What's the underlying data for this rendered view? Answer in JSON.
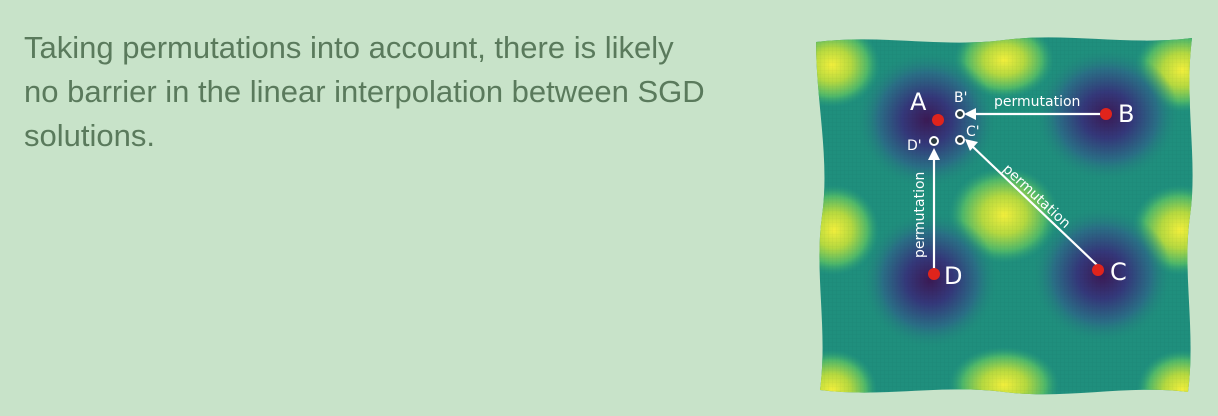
{
  "text": {
    "lines": [
      "Taking permutations into account, there is likely",
      "no barrier in the linear interpolation between SGD",
      "solutions."
    ]
  },
  "figure": {
    "points": {
      "A": "A",
      "B": "B",
      "C": "C",
      "D": "D",
      "B_prime": "B'",
      "C_prime": "C'",
      "D_prime": "D'"
    },
    "arrow_labels": {
      "top": "permutation",
      "diagonal": "permutation",
      "vertical": "permutation"
    },
    "colors": {
      "solution_point": "#e0241c",
      "permuted_point": "#ffffff",
      "surface_low": "#3b1a55",
      "surface_mid": "#1f8a7a",
      "surface_high": "#e8e83a"
    }
  }
}
